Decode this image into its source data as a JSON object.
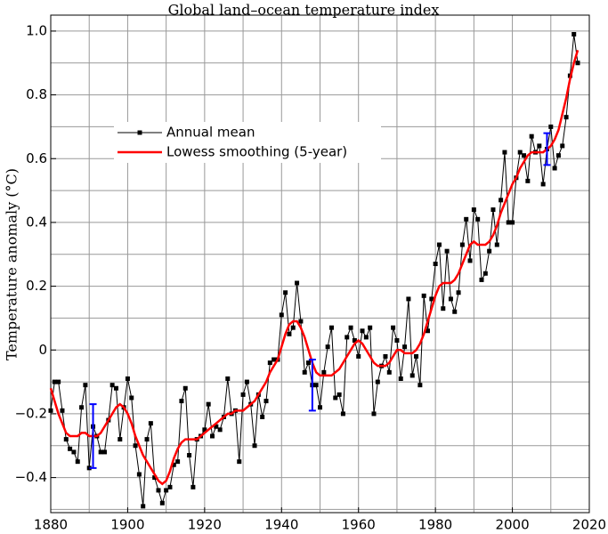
{
  "chart_data": {
    "type": "line",
    "title": "Global land–ocean temperature index",
    "ylabel": "Temperature anomaly (°C)",
    "x": [
      1880,
      1881,
      1882,
      1883,
      1884,
      1885,
      1886,
      1887,
      1888,
      1889,
      1890,
      1891,
      1892,
      1893,
      1894,
      1895,
      1896,
      1897,
      1898,
      1899,
      1900,
      1901,
      1902,
      1903,
      1904,
      1905,
      1906,
      1907,
      1908,
      1909,
      1910,
      1911,
      1912,
      1913,
      1914,
      1915,
      1916,
      1917,
      1918,
      1919,
      1920,
      1921,
      1922,
      1923,
      1924,
      1925,
      1926,
      1927,
      1928,
      1929,
      1930,
      1931,
      1932,
      1933,
      1934,
      1935,
      1936,
      1937,
      1938,
      1939,
      1940,
      1941,
      1942,
      1943,
      1944,
      1945,
      1946,
      1947,
      1948,
      1949,
      1950,
      1951,
      1952,
      1953,
      1954,
      1955,
      1956,
      1957,
      1958,
      1959,
      1960,
      1961,
      1962,
      1963,
      1964,
      1965,
      1966,
      1967,
      1968,
      1969,
      1970,
      1971,
      1972,
      1973,
      1974,
      1975,
      1976,
      1977,
      1978,
      1979,
      1980,
      1981,
      1982,
      1983,
      1984,
      1985,
      1986,
      1987,
      1988,
      1989,
      1990,
      1991,
      1992,
      1993,
      1994,
      1995,
      1996,
      1997,
      1998,
      1999,
      2000,
      2001,
      2002,
      2003,
      2004,
      2005,
      2006,
      2007,
      2008,
      2009,
      2010,
      2011,
      2012,
      2013,
      2014,
      2015,
      2016,
      2017
    ],
    "series": [
      {
        "name": "Annual mean",
        "color": "#000000",
        "markers": true,
        "values": [
          -0.19,
          -0.1,
          -0.1,
          -0.19,
          -0.28,
          -0.31,
          -0.32,
          -0.35,
          -0.18,
          -0.11,
          -0.37,
          -0.24,
          -0.27,
          -0.32,
          -0.32,
          -0.22,
          -0.11,
          -0.12,
          -0.28,
          -0.18,
          -0.09,
          -0.15,
          -0.3,
          -0.39,
          -0.49,
          -0.28,
          -0.23,
          -0.4,
          -0.44,
          -0.48,
          -0.44,
          -0.43,
          -0.36,
          -0.35,
          -0.16,
          -0.12,
          -0.33,
          -0.43,
          -0.28,
          -0.27,
          -0.25,
          -0.17,
          -0.27,
          -0.24,
          -0.25,
          -0.21,
          -0.09,
          -0.2,
          -0.19,
          -0.35,
          -0.14,
          -0.1,
          -0.17,
          -0.3,
          -0.14,
          -0.21,
          -0.16,
          -0.04,
          -0.03,
          -0.03,
          0.11,
          0.18,
          0.05,
          0.07,
          0.21,
          0.09,
          -0.07,
          -0.04,
          -0.11,
          -0.11,
          -0.18,
          -0.07,
          0.01,
          0.07,
          -0.15,
          -0.14,
          -0.2,
          0.04,
          0.07,
          0.03,
          -0.02,
          0.06,
          0.04,
          0.07,
          -0.2,
          -0.1,
          -0.05,
          -0.02,
          -0.07,
          0.07,
          0.03,
          -0.09,
          0.01,
          0.16,
          -0.08,
          -0.02,
          -0.11,
          0.17,
          0.06,
          0.16,
          0.27,
          0.33,
          0.13,
          0.31,
          0.16,
          0.12,
          0.18,
          0.33,
          0.41,
          0.28,
          0.44,
          0.41,
          0.22,
          0.24,
          0.31,
          0.44,
          0.33,
          0.47,
          0.62,
          0.4,
          0.4,
          0.54,
          0.62,
          0.61,
          0.53,
          0.67,
          0.62,
          0.64,
          0.52,
          0.63,
          0.7,
          0.57,
          0.61,
          0.64,
          0.73,
          0.86,
          0.99,
          0.9
        ]
      },
      {
        "name": "Lowess smoothing (5-year)",
        "color": "#ff0000",
        "markers": false,
        "values": [
          -0.12,
          -0.16,
          -0.2,
          -0.23,
          -0.26,
          -0.27,
          -0.27,
          -0.27,
          -0.26,
          -0.26,
          -0.27,
          -0.27,
          -0.27,
          -0.26,
          -0.24,
          -0.22,
          -0.2,
          -0.18,
          -0.17,
          -0.18,
          -0.2,
          -0.23,
          -0.27,
          -0.3,
          -0.33,
          -0.35,
          -0.37,
          -0.39,
          -0.41,
          -0.42,
          -0.41,
          -0.38,
          -0.34,
          -0.31,
          -0.29,
          -0.28,
          -0.28,
          -0.28,
          -0.28,
          -0.27,
          -0.26,
          -0.25,
          -0.24,
          -0.23,
          -0.22,
          -0.21,
          -0.2,
          -0.2,
          -0.19,
          -0.19,
          -0.19,
          -0.18,
          -0.17,
          -0.16,
          -0.14,
          -0.12,
          -0.1,
          -0.07,
          -0.05,
          -0.03,
          0.01,
          0.05,
          0.08,
          0.09,
          0.09,
          0.07,
          0.04,
          0.0,
          -0.04,
          -0.07,
          -0.08,
          -0.08,
          -0.08,
          -0.08,
          -0.07,
          -0.06,
          -0.04,
          -0.02,
          0.0,
          0.02,
          0.03,
          0.02,
          0.0,
          -0.02,
          -0.04,
          -0.05,
          -0.05,
          -0.05,
          -0.04,
          -0.02,
          0.0,
          0.0,
          -0.01,
          -0.01,
          -0.01,
          0.0,
          0.02,
          0.05,
          0.09,
          0.13,
          0.17,
          0.2,
          0.21,
          0.21,
          0.21,
          0.22,
          0.24,
          0.27,
          0.3,
          0.33,
          0.34,
          0.33,
          0.33,
          0.33,
          0.34,
          0.36,
          0.39,
          0.43,
          0.46,
          0.49,
          0.52,
          0.54,
          0.57,
          0.59,
          0.61,
          0.62,
          0.62,
          0.62,
          0.62,
          0.63,
          0.64,
          0.66,
          0.69,
          0.74,
          0.79,
          0.85,
          0.9,
          0.94
        ]
      }
    ],
    "error_bars": {
      "color": "#0000ff",
      "x": [
        1891,
        1948,
        2009
      ],
      "values": [
        -0.27,
        -0.11,
        0.63
      ],
      "errors": [
        0.1,
        0.08,
        0.05
      ]
    },
    "xlim": [
      1880,
      2020
    ],
    "xticks": [
      1880,
      1900,
      1920,
      1940,
      1960,
      1980,
      2000,
      2020
    ],
    "xgrid": [
      1890,
      1900,
      1910,
      1920,
      1930,
      1940,
      1950,
      1960,
      1970,
      1980,
      1990,
      2000,
      2010
    ],
    "ylim": [
      -0.51,
      1.05
    ],
    "yticks": [
      {
        "value": -0.4,
        "label": "−0.4"
      },
      {
        "value": -0.2,
        "label": "−0.2"
      },
      0,
      0.2,
      0.4,
      0.6,
      0.8,
      {
        "value": 1.0,
        "label": "1.0"
      }
    ],
    "ygrid": [
      -0.5,
      -0.4,
      -0.3,
      -0.2,
      -0.1,
      0,
      0.1,
      0.2,
      0.3,
      0.4,
      0.5,
      0.6,
      0.7,
      0.8,
      0.9,
      1.0
    ],
    "grid": true,
    "legend": "upper left"
  }
}
